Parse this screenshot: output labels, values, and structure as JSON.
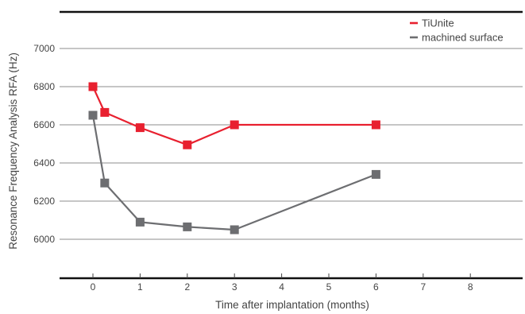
{
  "chart_data": {
    "type": "line",
    "title": "",
    "xlabel": "Time after implantation (months)",
    "ylabel": "Resonance Frequency Analysis RFA (Hz)",
    "x_ticks": [
      0,
      1,
      2,
      3,
      4,
      5,
      6,
      7,
      8
    ],
    "y_ticks": [
      6000,
      6200,
      6400,
      6600,
      6800,
      7000
    ],
    "xlim": [
      -0.7,
      9.0
    ],
    "ylim": [
      5800,
      7400
    ],
    "grid": "horizontal",
    "legend_position": "top-right",
    "series": [
      {
        "name": "TiUnite",
        "color": "#e8202f",
        "x": [
          0,
          0.25,
          1,
          2,
          3,
          6
        ],
        "y": [
          6800,
          6665,
          6585,
          6495,
          6600,
          6600
        ]
      },
      {
        "name": "machined surface",
        "color": "#6d6e71",
        "x": [
          0,
          0.25,
          1,
          2,
          3,
          6
        ],
        "y": [
          6650,
          6295,
          6090,
          6065,
          6050,
          6340
        ]
      }
    ]
  }
}
